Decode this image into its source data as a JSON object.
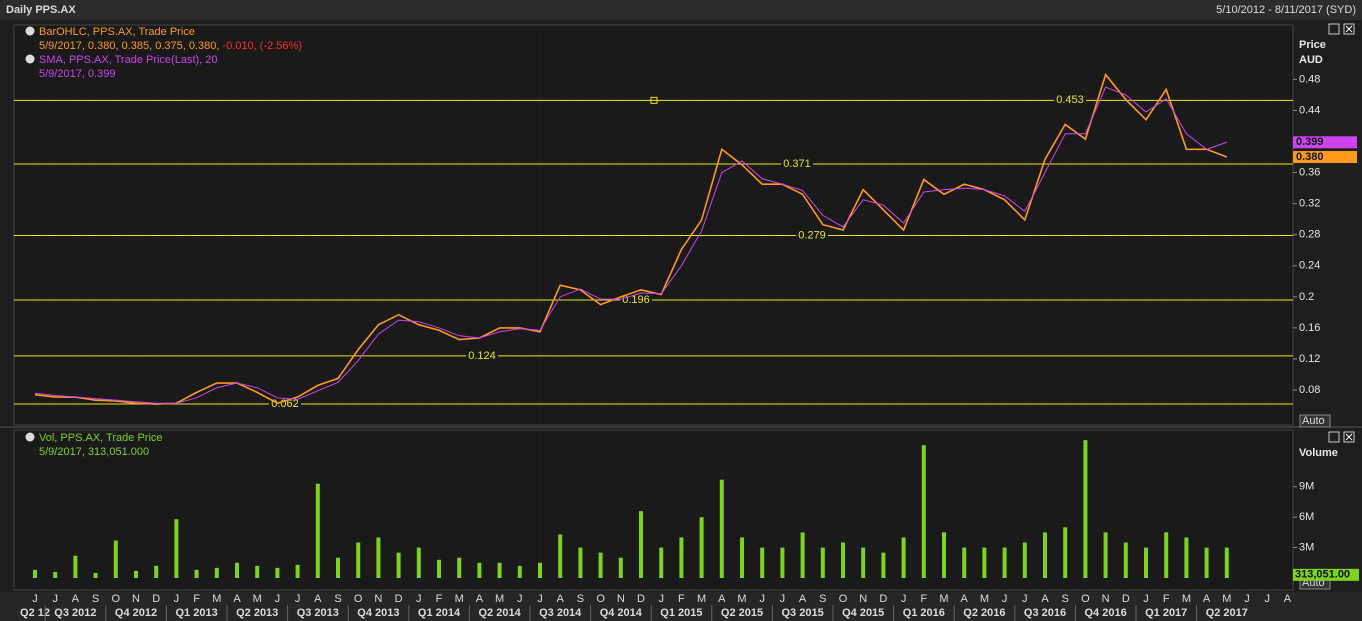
{
  "header": {
    "title": "Daily PPS.AX",
    "date_range": "5/10/2012 - 8/11/2017 (SYD)"
  },
  "chart_data": [
    {
      "type": "line",
      "y_label": "Price",
      "y_unit": "AUD",
      "scale_mode": "Auto",
      "ylim": [
        0.035,
        0.55
      ],
      "yticks": [
        0.08,
        0.12,
        0.16,
        0.2,
        0.24,
        0.28,
        0.32,
        0.36,
        0.44,
        0.48
      ],
      "levels": [
        0.453,
        0.371,
        0.279,
        0.196,
        0.124,
        0.062
      ],
      "level_color": "#e8e81a",
      "series": [
        {
          "name": "BarOHLC, PPS.AX, Trade Price",
          "color": "#ff9a1a",
          "detail": "5/9/2017, 0.380, 0.385, 0.375, 0.380,",
          "change": "-0.010, (-2.56%)",
          "last_value": {
            "value": 0.38,
            "label": "0.380"
          },
          "values": [
            0.074,
            0.071,
            0.071,
            0.067,
            0.066,
            0.063,
            0.062,
            0.063,
            0.077,
            0.089,
            0.089,
            0.077,
            0.063,
            0.071,
            0.086,
            0.095,
            0.132,
            0.164,
            0.177,
            0.164,
            0.157,
            0.145,
            0.147,
            0.16,
            0.16,
            0.155,
            0.215,
            0.209,
            0.19,
            0.2,
            0.209,
            0.203,
            0.261,
            0.299,
            0.39,
            0.37,
            0.345,
            0.345,
            0.332,
            0.293,
            0.286,
            0.338,
            0.312,
            0.286,
            0.351,
            0.332,
            0.345,
            0.338,
            0.325,
            0.299,
            0.377,
            0.422,
            0.403,
            0.486,
            0.454,
            0.428,
            0.467,
            0.39,
            0.39,
            0.38,
            null,
            null,
            null
          ]
        },
        {
          "name": "SMA, PPS.AX, Trade Price(Last), 20",
          "color": "#cc44ee",
          "detail": "5/9/2017, 0.399",
          "last_value": {
            "value": 0.399,
            "label": "0.399"
          },
          "values": [
            0.076,
            0.073,
            0.071,
            0.069,
            0.067,
            0.065,
            0.063,
            0.063,
            0.07,
            0.083,
            0.089,
            0.083,
            0.07,
            0.068,
            0.079,
            0.09,
            0.118,
            0.152,
            0.17,
            0.168,
            0.16,
            0.15,
            0.147,
            0.155,
            0.159,
            0.157,
            0.2,
            0.21,
            0.197,
            0.197,
            0.205,
            0.204,
            0.24,
            0.285,
            0.36,
            0.375,
            0.352,
            0.345,
            0.337,
            0.305,
            0.29,
            0.325,
            0.318,
            0.295,
            0.335,
            0.338,
            0.34,
            0.338,
            0.33,
            0.31,
            0.36,
            0.41,
            0.41,
            0.47,
            0.46,
            0.438,
            0.455,
            0.41,
            0.39,
            0.399,
            null,
            null,
            null
          ]
        }
      ]
    },
    {
      "type": "bar",
      "name": "Vol, PPS.AX, Trade Price",
      "detail": "5/9/2017, 313,051.000",
      "y_label": "Volume",
      "scale_mode": "Auto",
      "color": "#7ed321",
      "ylim": [
        0,
        14600000
      ],
      "yticks": [
        {
          "value": 3000000,
          "label": "3M"
        },
        {
          "value": 6000000,
          "label": "6M"
        },
        {
          "value": 9000000,
          "label": "9M"
        }
      ],
      "last_value": {
        "value": 313051,
        "label": "313,051.00"
      },
      "categories": [
        "J",
        "J",
        "A",
        "S",
        "O",
        "N",
        "D",
        "J",
        "F",
        "M",
        "A",
        "M",
        "J",
        "J",
        "A",
        "S",
        "O",
        "N",
        "D",
        "J",
        "F",
        "M",
        "A",
        "M",
        "J",
        "J",
        "A",
        "S",
        "O",
        "N",
        "D",
        "J",
        "F",
        "M",
        "A",
        "M",
        "J",
        "J",
        "A",
        "S",
        "O",
        "N",
        "D",
        "J",
        "F",
        "M",
        "A",
        "M",
        "J",
        "J",
        "A",
        "S",
        "O",
        "N",
        "D",
        "J",
        "F",
        "M",
        "A",
        "M",
        "J",
        "J",
        "A"
      ],
      "quarters": [
        "Q2 12",
        "Q3 2012",
        "Q4 2012",
        "Q1 2013",
        "Q2 2013",
        "Q3 2013",
        "Q4 2013",
        "Q1 2014",
        "Q2 2014",
        "Q3 2014",
        "Q4 2014",
        "Q1 2015",
        "Q2 2015",
        "Q3 2015",
        "Q4 2015",
        "Q1 2016",
        "Q2 2016",
        "Q3 2016",
        "Q4 2016",
        "Q1 2017",
        "Q2 2017"
      ],
      "values": [
        800000,
        600000,
        2200000,
        500000,
        3700000,
        700000,
        1200000,
        5800000,
        800000,
        1000000,
        1500000,
        1200000,
        1000000,
        1300000,
        9300000,
        2000000,
        3500000,
        4000000,
        2500000,
        3000000,
        1800000,
        2000000,
        1500000,
        1500000,
        1200000,
        1500000,
        4300000,
        3000000,
        2500000,
        2000000,
        6600000,
        3000000,
        4000000,
        6000000,
        9700000,
        4000000,
        3000000,
        3000000,
        4500000,
        3000000,
        3500000,
        3000000,
        2500000,
        4000000,
        13100000,
        4500000,
        3000000,
        3000000,
        3000000,
        3500000,
        4500000,
        5000000,
        13600000,
        4500000,
        3500000,
        3000000,
        4500000,
        4000000,
        3000000,
        3000000,
        null,
        null,
        null
      ]
    }
  ]
}
